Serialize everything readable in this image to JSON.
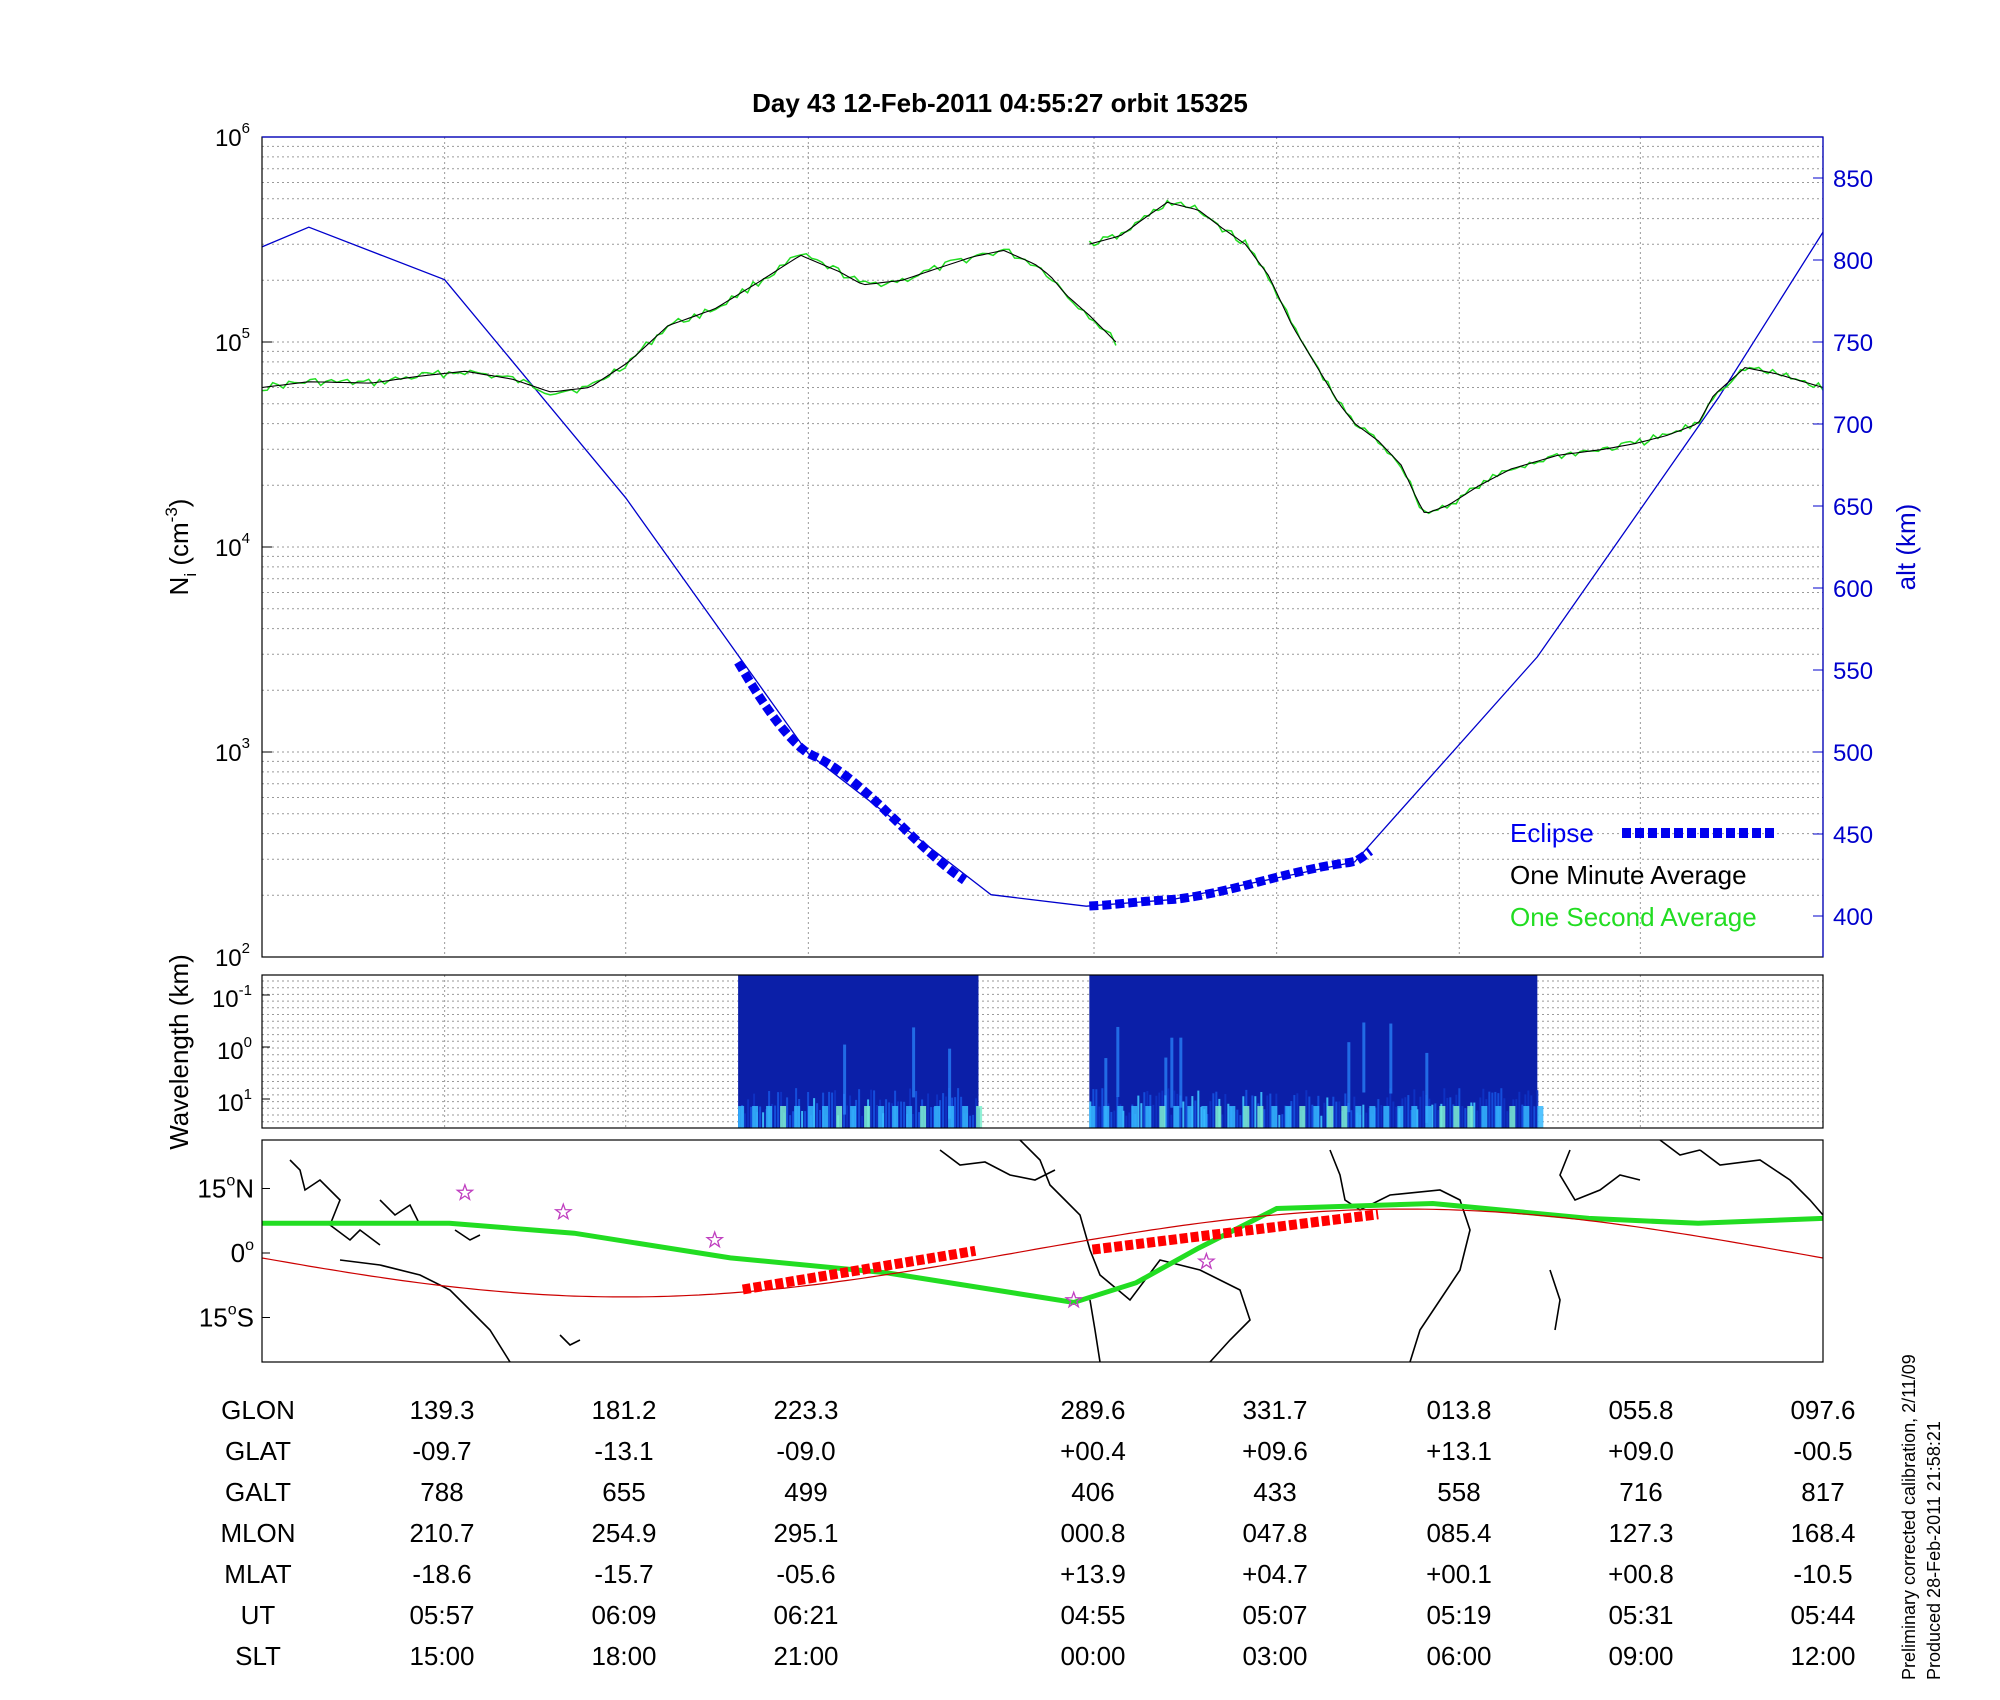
{
  "title": "Day 43  12-Feb-2011 04:55:27   orbit 15325",
  "footnote": {
    "line1": "Preliminary corrected calibration, 2/11/09",
    "line2": "Produced 28-Feb-2011 21:58:21"
  },
  "colors": {
    "altitude": "#0000cc",
    "one_minute": "#000000",
    "one_second": "#22dd22",
    "eclipse": "#0000ee",
    "track": "#ff0000",
    "magnetic_equator": "#22dd22",
    "geographic_orbit": "#cc0000"
  },
  "chart_data": [
    {
      "type": "line",
      "panel": "ion-density",
      "ylabel": "N",
      "ylabel_sub": "i",
      "ylabel_units": " (cm",
      "ylabel_units_sup": "-3",
      "ylabel_close": ")",
      "yscale": "log",
      "ylim": [
        100,
        1000000
      ],
      "y_ticks": [
        {
          "base": "10",
          "exp": "2",
          "value": 100
        },
        {
          "base": "10",
          "exp": "3",
          "value": 1000
        },
        {
          "base": "10",
          "exp": "4",
          "value": 10000
        },
        {
          "base": "10",
          "exp": "5",
          "value": 100000
        },
        {
          "base": "10",
          "exp": "6",
          "value": 1000000
        }
      ],
      "y2label": "alt (km)",
      "y2lim": [
        375,
        875
      ],
      "y2_ticks": [
        "400",
        "450",
        "500",
        "550",
        "600",
        "650",
        "700",
        "750",
        "800",
        "850"
      ],
      "grid": true,
      "legend_position": "bottom-right",
      "legend": [
        {
          "label": "Eclipse",
          "color": "#0000ee",
          "style": "dashed-thick"
        },
        {
          "label": "One Minute Average",
          "color": "#000000"
        },
        {
          "label": "One Second Average",
          "color": "#22dd22"
        }
      ],
      "series": [
        {
          "segment": "before-gap",
          "x_frac": [
            0.0,
            0.03,
            0.07,
            0.1,
            0.13,
            0.16,
            0.185,
            0.21,
            0.235,
            0.26,
            0.29,
            0.32,
            0.345,
            0.37,
            0.385,
            0.41,
            0.43,
            0.455,
            0.475,
            0.495,
            0.505,
            0.515,
            0.53,
            0.547
          ],
          "values": [
            60000,
            64000,
            63000,
            68000,
            72000,
            66000,
            57000,
            60000,
            80000,
            120000,
            145000,
            200000,
            265000,
            220000,
            190000,
            200000,
            225000,
            260000,
            280000,
            240000,
            210000,
            170000,
            135000,
            100000
          ]
        },
        {
          "segment": "after-gap",
          "x_frac": [
            0.53,
            0.55,
            0.565,
            0.58,
            0.6,
            0.615,
            0.63,
            0.645,
            0.66,
            0.69,
            0.7,
            0.715,
            0.73,
            0.74,
            0.745,
            0.76,
            0.78,
            0.8,
            0.83,
            0.86,
            0.88,
            0.9,
            0.92,
            0.93,
            0.95,
            0.97,
            1.0
          ],
          "values": [
            300000,
            330000,
            400000,
            480000,
            440000,
            360000,
            300000,
            210000,
            120000,
            50000,
            40000,
            33000,
            25000,
            17000,
            14500,
            16000,
            20000,
            24000,
            28000,
            30000,
            32000,
            35000,
            40000,
            55000,
            75000,
            70000,
            60000
          ]
        }
      ],
      "altitude_km": {
        "x_frac": [
          0.03,
          0.117,
          0.233,
          0.35,
          0.467,
          0.528,
          0.583,
          0.7,
          0.817,
          0.933,
          1.0
        ],
        "values": [
          820,
          788,
          655,
          499,
          413,
          406,
          410,
          433,
          558,
          716,
          817
        ]
      },
      "eclipse_segments": [
        {
          "x_frac": [
            0.305,
            0.45
          ]
        },
        {
          "x_frac": [
            0.53,
            0.71
          ]
        }
      ]
    },
    {
      "type": "heatmap",
      "panel": "spectrogram",
      "ylabel": "Wavelength (km)",
      "y_ticks": [
        {
          "base": "10",
          "exp": "-1"
        },
        {
          "base": "10",
          "exp": "0"
        },
        {
          "base": "10",
          "exp": "1"
        }
      ],
      "data_segments": [
        {
          "x_frac": [
            0.305,
            0.459
          ]
        },
        {
          "x_frac": [
            0.53,
            0.817
          ]
        }
      ]
    },
    {
      "type": "line",
      "panel": "ground-track-map",
      "y_ticks": [
        {
          "deg": "15",
          "hemi": "N"
        },
        {
          "deg": "0",
          "hemi": ""
        },
        {
          "deg": "15",
          "hemi": "S"
        }
      ],
      "degree_symbol": "o"
    }
  ],
  "table": {
    "rows": [
      {
        "label": "GLON",
        "values": [
          "139.3",
          "181.2",
          "223.3",
          "289.6",
          "331.7",
          "013.8",
          "055.8",
          "097.6"
        ]
      },
      {
        "label": "GLAT",
        "values": [
          "-09.7",
          "-13.1",
          "-09.0",
          "+00.4",
          "+09.6",
          "+13.1",
          "+09.0",
          "-00.5"
        ]
      },
      {
        "label": "GALT",
        "values": [
          "788",
          "655",
          "499",
          "406",
          "433",
          "558",
          "716",
          "817"
        ]
      },
      {
        "label": "MLON",
        "values": [
          "210.7",
          "254.9",
          "295.1",
          "000.8",
          "047.8",
          "085.4",
          "127.3",
          "168.4"
        ]
      },
      {
        "label": "MLAT",
        "values": [
          "-18.6",
          "-15.7",
          "-05.6",
          "+13.9",
          "+04.7",
          "+00.1",
          "+00.8",
          "-10.5"
        ]
      },
      {
        "label": "UT",
        "values": [
          "05:57",
          "06:09",
          "06:21",
          "04:55",
          "05:07",
          "05:19",
          "05:31",
          "05:44"
        ]
      },
      {
        "label": "SLT",
        "values": [
          "15:00",
          "18:00",
          "21:00",
          "00:00",
          "03:00",
          "06:00",
          "09:00",
          "12:00"
        ]
      }
    ]
  }
}
